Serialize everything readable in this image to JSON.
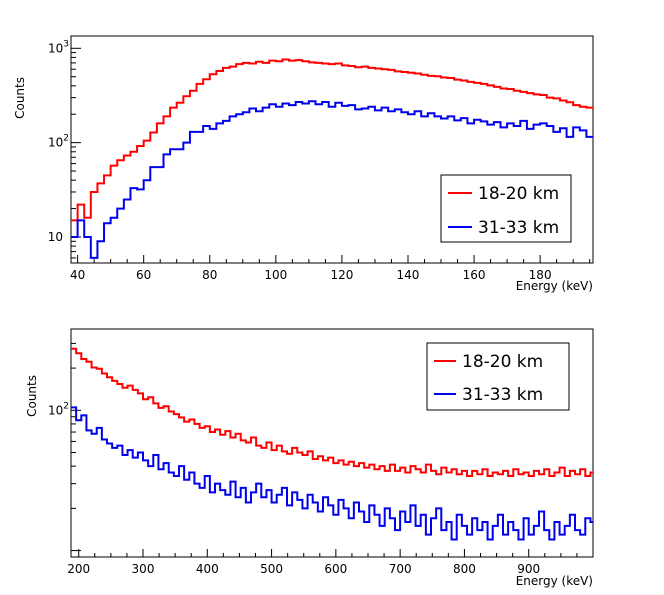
{
  "chart_data": [
    {
      "type": "line",
      "title": "",
      "xlabel": "Energy (keV)",
      "ylabel": "Counts",
      "xlim": [
        38,
        196
      ],
      "ylim": [
        5.3,
        1350
      ],
      "yscale": "log",
      "x_ticks": [
        40,
        60,
        80,
        100,
        120,
        140,
        160,
        180
      ],
      "x_tick_labels": [
        "40",
        "60",
        "80",
        "100",
        "120",
        "140",
        "160",
        "180"
      ],
      "y_ticks": [
        10,
        100,
        1000
      ],
      "y_tick_labels": [
        {
          "base": "10",
          "exp": ""
        },
        {
          "base": "10",
          "exp": "2"
        },
        {
          "base": "10",
          "exp": "3"
        }
      ],
      "legend_position": "bottom-right",
      "bin_edges": {
        "start": 38,
        "width": 2,
        "count": 79
      },
      "series": [
        {
          "name": "18-20 km",
          "color": "#ff0000",
          "values": [
            15,
            22,
            16,
            30,
            37,
            45,
            57,
            65,
            73,
            80,
            92,
            105,
            128,
            160,
            190,
            235,
            265,
            310,
            355,
            420,
            470,
            530,
            575,
            620,
            640,
            680,
            700,
            690,
            720,
            700,
            740,
            730,
            760,
            740,
            750,
            730,
            710,
            700,
            690,
            680,
            690,
            660,
            650,
            630,
            640,
            620,
            610,
            600,
            590,
            570,
            560,
            550,
            540,
            525,
            510,
            505,
            490,
            485,
            465,
            455,
            440,
            430,
            420,
            405,
            390,
            375,
            370,
            355,
            345,
            335,
            325,
            320,
            300,
            295,
            280,
            268,
            250,
            240,
            235
          ]
        },
        {
          "name": "31-33 km",
          "color": "#0000ee",
          "values": [
            10,
            15,
            10,
            6,
            9,
            14,
            16,
            20,
            25,
            33,
            32,
            40,
            55,
            55,
            75,
            85,
            85,
            100,
            130,
            130,
            150,
            140,
            160,
            170,
            190,
            200,
            210,
            230,
            215,
            235,
            255,
            240,
            260,
            250,
            270,
            260,
            275,
            255,
            270,
            240,
            265,
            245,
            250,
            225,
            230,
            240,
            220,
            235,
            215,
            225,
            210,
            200,
            215,
            190,
            205,
            190,
            180,
            190,
            172,
            182,
            160,
            175,
            168,
            155,
            165,
            145,
            160,
            150,
            170,
            140,
            155,
            160,
            150,
            130,
            142,
            115,
            145,
            135,
            115
          ]
        }
      ]
    },
    {
      "type": "line",
      "title": "",
      "xlabel": "Energy (keV)",
      "ylabel": "Counts",
      "xlim": [
        188,
        1000
      ],
      "ylim": [
        9,
        380
      ],
      "yscale": "log",
      "x_ticks": [
        200,
        300,
        400,
        500,
        600,
        700,
        800,
        900
      ],
      "x_tick_labels": [
        "200",
        "300",
        "400",
        "500",
        "600",
        "700",
        "800",
        "900"
      ],
      "y_ticks": [
        100
      ],
      "y_tick_labels": [
        {
          "base": "10",
          "exp": "2"
        }
      ],
      "legend_position": "top-right",
      "bin_edges": {
        "start": 188,
        "width": 8,
        "count": 102
      },
      "series": [
        {
          "name": "18-20 km",
          "color": "#ff0000",
          "values": [
            275,
            255,
            232,
            222,
            202,
            198,
            183,
            172,
            162,
            154,
            145,
            150,
            140,
            132,
            120,
            124,
            112,
            104,
            107,
            98,
            94,
            89,
            83,
            86,
            80,
            75,
            77,
            70,
            73,
            67,
            71,
            64,
            68,
            61,
            59,
            64,
            56,
            54,
            59,
            52,
            56,
            51,
            49,
            54,
            50,
            48,
            51,
            45,
            47,
            44,
            46,
            42,
            44,
            41,
            43,
            40,
            42,
            39,
            41,
            38,
            40,
            37,
            41,
            37,
            39,
            36,
            40,
            38,
            36,
            41,
            37,
            35,
            39,
            36,
            38,
            35,
            37,
            34,
            37,
            35,
            38,
            34,
            36,
            35,
            37,
            34,
            38,
            35,
            36,
            34,
            37,
            35,
            38,
            34,
            36,
            39,
            34,
            37,
            35,
            38,
            34,
            36
          ]
        },
        {
          "name": "31-33 km",
          "color": "#0000ee",
          "values": [
            105,
            85,
            92,
            72,
            68,
            75,
            62,
            58,
            54,
            56,
            48,
            52,
            46,
            50,
            44,
            40,
            48,
            38,
            42,
            36,
            34,
            40,
            32,
            36,
            30,
            28,
            34,
            26,
            30,
            27,
            25,
            31,
            24,
            28,
            22,
            26,
            30,
            24,
            27,
            22,
            25,
            28,
            21,
            26,
            23,
            20,
            25,
            22,
            19,
            24,
            21,
            18,
            23,
            20,
            17,
            22,
            19,
            16,
            21,
            18,
            15,
            20,
            17,
            14,
            19,
            16,
            21,
            15,
            18,
            13,
            17,
            20,
            14,
            16,
            12,
            18,
            15,
            13,
            17,
            14,
            16,
            12,
            15,
            18,
            13,
            16,
            14,
            12,
            17,
            13,
            15,
            19,
            14,
            12,
            16,
            13,
            15,
            18,
            14,
            13,
            17,
            16
          ]
        }
      ]
    }
  ]
}
